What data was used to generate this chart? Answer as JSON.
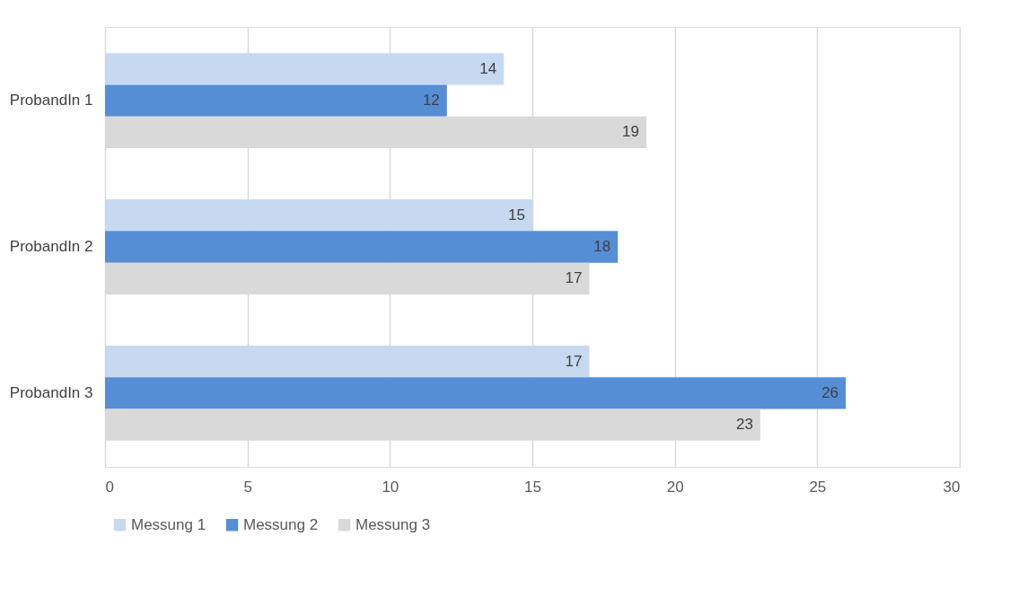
{
  "chart_data": {
    "type": "bar",
    "orientation": "horizontal",
    "categories": [
      "ProbandIn 1",
      "ProbandIn 2",
      "ProbandIn 3"
    ],
    "series": [
      {
        "name": "Messung 1",
        "color": "#c6d9f1",
        "values": [
          14,
          15,
          17
        ]
      },
      {
        "name": "Messung 2",
        "color": "#558ed5",
        "values": [
          12,
          18,
          26
        ]
      },
      {
        "name": "Messung 3",
        "color": "#d9d9d9",
        "values": [
          19,
          17,
          23
        ]
      }
    ],
    "xlim": [
      0,
      30
    ],
    "xticks": [
      0,
      5,
      10,
      15,
      20,
      25,
      30
    ],
    "grid": "x",
    "legend": "bottom",
    "data_labels": true
  }
}
